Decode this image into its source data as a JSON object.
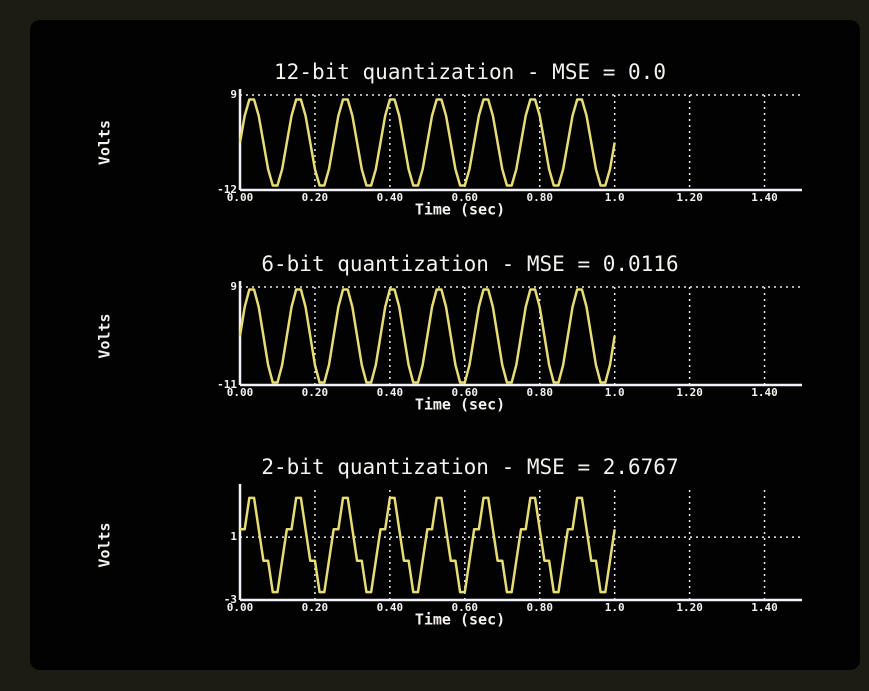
{
  "chart_data": [
    {
      "type": "line",
      "title": "12-bit quantization - MSE = 0.0",
      "xlabel": "Time (sec)",
      "ylabel": "Volts",
      "x": [
        0,
        0.0125,
        0.025,
        0.0375,
        0.05,
        0.0625,
        0.075,
        0.0875,
        0.1,
        0.1125,
        0.125,
        0.1375,
        0.15,
        0.1625,
        0.175,
        0.1875,
        0.2,
        0.2125,
        0.225,
        0.2375,
        0.25,
        0.2625,
        0.275,
        0.2875,
        0.3,
        0.3125,
        0.325,
        0.3375,
        0.35,
        0.3625,
        0.375,
        0.3875,
        0.4,
        0.4125,
        0.425,
        0.4375,
        0.45,
        0.4625,
        0.475,
        0.4875,
        0.5,
        0.5125,
        0.525,
        0.5375,
        0.55,
        0.5625,
        0.575,
        0.5875,
        0.6,
        0.6125,
        0.625,
        0.6375,
        0.65,
        0.6625,
        0.675,
        0.6875,
        0.7,
        0.7125,
        0.725,
        0.7375,
        0.75,
        0.7625,
        0.775,
        0.7875,
        0.8,
        0.8125,
        0.825,
        0.8375,
        0.85,
        0.8625,
        0.875,
        0.8875,
        0.9,
        0.9125,
        0.925,
        0.9375,
        0.95,
        0.9625,
        0.975,
        0.9875,
        1
      ],
      "series": [
        {
          "color": "#e6dd74",
          "values": [
            -1.5,
            4.4,
            8,
            8,
            4.4,
            -1.5,
            -7.4,
            -11,
            -11,
            -7.4,
            -1.5,
            4.4,
            8,
            8,
            4.4,
            -1.5,
            -7.4,
            -11,
            -11,
            -7.4,
            -1.5,
            4.4,
            8,
            8,
            4.4,
            -1.5,
            -7.4,
            -11,
            -11,
            -7.4,
            -1.5,
            4.4,
            8,
            8,
            4.4,
            -1.5,
            -7.4,
            -11,
            -11,
            -7.4,
            -1.5,
            4.4,
            8,
            8,
            4.4,
            -1.5,
            -7.4,
            -11,
            -11,
            -7.4,
            -1.5,
            4.4,
            8,
            8,
            4.4,
            -1.5,
            -7.4,
            -11,
            -11,
            -7.4,
            -1.5,
            4.4,
            8,
            8,
            4.4,
            -1.5,
            -7.4,
            -11,
            -11,
            -7.4,
            -1.5,
            4.4,
            8,
            8,
            4.4,
            -1.5,
            -7.4,
            -11,
            -11,
            -7.4,
            -1.5
          ]
        }
      ],
      "xlim": [
        0,
        1.5
      ],
      "xticks": [
        {
          "value": 0,
          "label": "0.00"
        },
        {
          "value": 0.2,
          "label": "0.20"
        },
        {
          "value": 0.4,
          "label": "0.40"
        },
        {
          "value": 0.6,
          "label": "0.60"
        },
        {
          "value": 0.8,
          "label": "0.80"
        },
        {
          "value": 1,
          "label": "1.0"
        },
        {
          "value": 1.2,
          "label": "1.20"
        },
        {
          "value": 1.4,
          "label": "1.40"
        }
      ],
      "ylim": [
        -12,
        9
      ],
      "yticks": [
        -12,
        9
      ],
      "grid": true
    },
    {
      "type": "line",
      "title": "6-bit quantization - MSE = 0.0116",
      "xlabel": "Time (sec)",
      "ylabel": "Volts",
      "x": [
        0,
        0.0125,
        0.025,
        0.0375,
        0.05,
        0.0625,
        0.075,
        0.0875,
        0.1,
        0.1125,
        0.125,
        0.1375,
        0.15,
        0.1625,
        0.175,
        0.1875,
        0.2,
        0.2125,
        0.225,
        0.2375,
        0.25,
        0.2625,
        0.275,
        0.2875,
        0.3,
        0.3125,
        0.325,
        0.3375,
        0.35,
        0.3625,
        0.375,
        0.3875,
        0.4,
        0.4125,
        0.425,
        0.4375,
        0.45,
        0.4625,
        0.475,
        0.4875,
        0.5,
        0.5125,
        0.525,
        0.5375,
        0.55,
        0.5625,
        0.575,
        0.5875,
        0.6,
        0.6125,
        0.625,
        0.6375,
        0.65,
        0.6625,
        0.675,
        0.6875,
        0.7,
        0.7125,
        0.725,
        0.7375,
        0.75,
        0.7625,
        0.775,
        0.7875,
        0.8,
        0.8125,
        0.825,
        0.8375,
        0.85,
        0.8625,
        0.875,
        0.8875,
        0.9,
        0.9125,
        0.925,
        0.9375,
        0.95,
        0.9625,
        0.975,
        0.9875,
        1
      ],
      "series": [
        {
          "color": "#e6dd74",
          "values": [
            -1,
            4.9,
            8.5,
            8.5,
            4.9,
            -1,
            -6.9,
            -10.5,
            -10.5,
            -6.9,
            -1,
            4.9,
            8.5,
            8.5,
            4.9,
            -1,
            -6.9,
            -10.5,
            -10.5,
            -6.9,
            -1,
            4.9,
            8.5,
            8.5,
            4.9,
            -1,
            -6.9,
            -10.5,
            -10.5,
            -6.9,
            -1,
            4.9,
            8.5,
            8.5,
            4.9,
            -1,
            -6.9,
            -10.5,
            -10.5,
            -6.9,
            -1,
            4.9,
            8.5,
            8.5,
            4.9,
            -1,
            -6.9,
            -10.5,
            -10.5,
            -6.9,
            -1,
            4.9,
            8.5,
            8.5,
            4.9,
            -1,
            -6.9,
            -10.5,
            -10.5,
            -6.9,
            -1,
            4.9,
            8.5,
            8.5,
            4.9,
            -1,
            -6.9,
            -10.5,
            -10.5,
            -6.9,
            -1,
            4.9,
            8.5,
            8.5,
            4.9,
            -1,
            -6.9,
            -10.5,
            -10.5,
            -6.9,
            -1
          ]
        }
      ],
      "xlim": [
        0,
        1.5
      ],
      "xticks": [
        {
          "value": 0,
          "label": "0.00"
        },
        {
          "value": 0.2,
          "label": "0.20"
        },
        {
          "value": 0.4,
          "label": "0.40"
        },
        {
          "value": 0.6,
          "label": "0.60"
        },
        {
          "value": 0.8,
          "label": "0.80"
        },
        {
          "value": 1,
          "label": "1.0"
        },
        {
          "value": 1.2,
          "label": "1.20"
        },
        {
          "value": 1.4,
          "label": "1.40"
        }
      ],
      "ylim": [
        -11,
        9
      ],
      "yticks": [
        -11,
        9
      ],
      "grid": true
    },
    {
      "type": "line",
      "title": "2-bit quantization - MSE = 2.6767",
      "xlabel": "Time (sec)",
      "ylabel": "Volts",
      "x": [
        0,
        0.0125,
        0.025,
        0.0375,
        0.05,
        0.0625,
        0.075,
        0.0875,
        0.1,
        0.1125,
        0.125,
        0.1375,
        0.15,
        0.1625,
        0.175,
        0.1875,
        0.2,
        0.2125,
        0.225,
        0.2375,
        0.25,
        0.2625,
        0.275,
        0.2875,
        0.3,
        0.3125,
        0.325,
        0.3375,
        0.35,
        0.3625,
        0.375,
        0.3875,
        0.4,
        0.4125,
        0.425,
        0.4375,
        0.45,
        0.4625,
        0.475,
        0.4875,
        0.5,
        0.5125,
        0.525,
        0.5375,
        0.55,
        0.5625,
        0.575,
        0.5875,
        0.6,
        0.6125,
        0.625,
        0.6375,
        0.65,
        0.6625,
        0.675,
        0.6875,
        0.7,
        0.7125,
        0.725,
        0.7375,
        0.75,
        0.7625,
        0.775,
        0.7875,
        0.8,
        0.8125,
        0.825,
        0.8375,
        0.85,
        0.8625,
        0.875,
        0.8875,
        0.9,
        0.9125,
        0.925,
        0.9375,
        0.95,
        0.9625,
        0.975,
        0.9875,
        1
      ],
      "series": [
        {
          "color": "#e6dd74",
          "values": [
            1.5,
            1.5,
            3.5,
            3.5,
            1.5,
            -0.5,
            -0.5,
            -2.5,
            -2.5,
            -0.5,
            1.5,
            1.5,
            3.5,
            3.5,
            1.5,
            -0.5,
            -0.5,
            -2.5,
            -2.5,
            -0.5,
            1.5,
            1.5,
            3.5,
            3.5,
            1.5,
            -0.5,
            -0.5,
            -2.5,
            -2.5,
            -0.5,
            1.5,
            1.5,
            3.5,
            3.5,
            1.5,
            -0.5,
            -0.5,
            -2.5,
            -2.5,
            -0.5,
            1.5,
            1.5,
            3.5,
            3.5,
            1.5,
            -0.5,
            -0.5,
            -2.5,
            -2.5,
            -0.5,
            1.5,
            1.5,
            3.5,
            3.5,
            1.5,
            -0.5,
            -0.5,
            -2.5,
            -2.5,
            -0.5,
            1.5,
            1.5,
            3.5,
            3.5,
            1.5,
            -0.5,
            -0.5,
            -2.5,
            -2.5,
            -0.5,
            1.5,
            1.5,
            3.5,
            3.5,
            1.5,
            -0.5,
            -0.5,
            -2.5,
            -2.5,
            -0.5,
            1.5
          ]
        }
      ],
      "xlim": [
        0,
        1.5
      ],
      "xticks": [
        {
          "value": 0,
          "label": "0.00"
        },
        {
          "value": 0.2,
          "label": "0.20"
        },
        {
          "value": 0.4,
          "label": "0.40"
        },
        {
          "value": 0.6,
          "label": "0.60"
        },
        {
          "value": 0.8,
          "label": "0.80"
        },
        {
          "value": 1,
          "label": "1.0"
        },
        {
          "value": 1.2,
          "label": "1.20"
        },
        {
          "value": 1.4,
          "label": "1.40"
        }
      ],
      "ylim": [
        -3,
        4
      ],
      "yticks": [
        -3,
        1
      ],
      "grid": true
    }
  ]
}
